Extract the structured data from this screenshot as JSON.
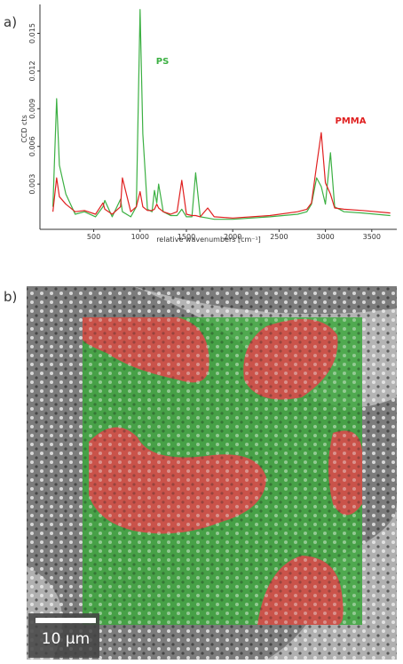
{
  "chart_data": {
    "type": "line",
    "y_label": "CCD cts",
    "x_label": "relative wavenumbers [cm⁻¹]",
    "x": [
      60,
      100,
      130,
      200,
      300,
      400,
      520,
      600,
      620,
      700,
      790,
      810,
      900,
      960,
      1000,
      1030,
      1080,
      1130,
      1155,
      1180,
      1200,
      1250,
      1330,
      1400,
      1450,
      1500,
      1560,
      1600,
      1650,
      1730,
      1800,
      2000,
      2400,
      2700,
      2800,
      2850,
      2905,
      2955,
      3000,
      3055,
      3100,
      3200,
      3400,
      3700
    ],
    "series": [
      {
        "name": "PS",
        "color": "#3cb043",
        "values": [
          0.0012,
          0.0098,
          0.0045,
          0.0022,
          0.0006,
          0.0008,
          0.0004,
          0.0012,
          0.0017,
          0.0004,
          0.0018,
          0.0008,
          0.0004,
          0.0012,
          0.0169,
          0.007,
          0.001,
          0.0008,
          0.0025,
          0.0015,
          0.003,
          0.0008,
          0.0005,
          0.0005,
          0.001,
          0.0004,
          0.0004,
          0.0039,
          0.0004,
          0.0003,
          0.0002,
          0.0002,
          0.0004,
          0.0006,
          0.0008,
          0.0014,
          0.0035,
          0.0028,
          0.0014,
          0.0055,
          0.0012,
          0.0008,
          0.0007,
          0.0005
        ]
      },
      {
        "name": "PMMA",
        "color": "#e02020",
        "values": [
          0.0008,
          0.0035,
          0.002,
          0.0014,
          0.0008,
          0.0009,
          0.0006,
          0.0015,
          0.001,
          0.0006,
          0.0012,
          0.0035,
          0.0008,
          0.0012,
          0.0024,
          0.0012,
          0.0009,
          0.0009,
          0.001,
          0.0014,
          0.0011,
          0.0008,
          0.0006,
          0.0008,
          0.0033,
          0.0006,
          0.0005,
          0.0005,
          0.0004,
          0.0011,
          0.0004,
          0.0003,
          0.0005,
          0.0008,
          0.001,
          0.0015,
          0.0045,
          0.0071,
          0.0031,
          0.0022,
          0.0011,
          0.001,
          0.0009,
          0.0007
        ]
      }
    ],
    "xlim": [
      -80,
      3770
    ],
    "xticks": [
      500,
      1000,
      1500,
      2000,
      2500,
      3000,
      3500
    ],
    "ylim": [
      -0.0006,
      0.0173
    ],
    "yticks": [
      0.003,
      0.006,
      0.009,
      0.012,
      0.015
    ],
    "grid": false
  },
  "panel_labels": [
    "a)",
    "b)"
  ],
  "micrograph": {
    "scale_bar": "10 µm"
  }
}
